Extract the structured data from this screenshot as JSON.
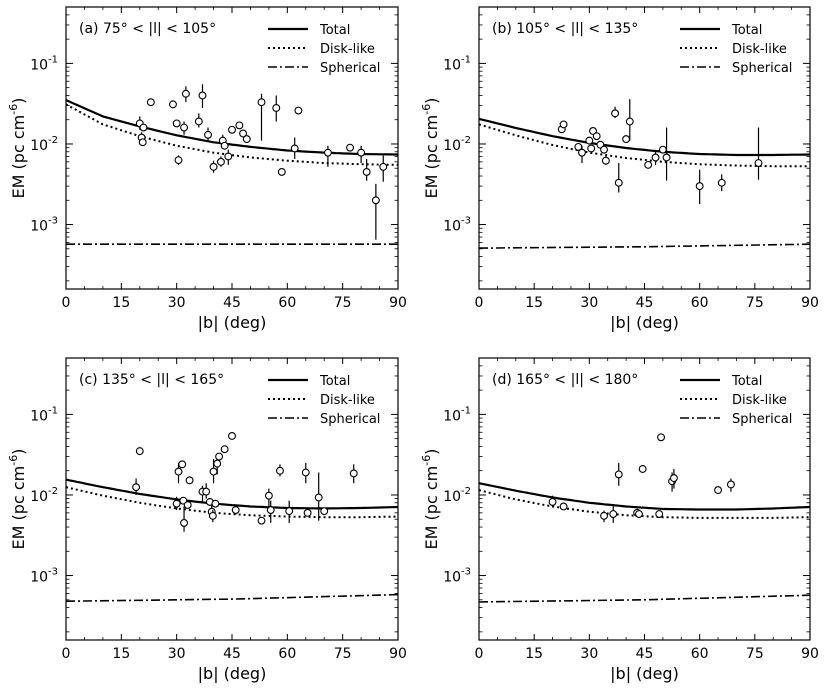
{
  "figure": {
    "xlabel": "|b|  (deg)",
    "ylabel": "EM  (pc cm",
    "ylabel_exp": "-6",
    "ylabel_close": ")"
  },
  "chart_data": [
    {
      "type": "scatter",
      "panel": "(a)",
      "title": "(a)  75° < |l| < 105°",
      "xlabel": "|b|  (deg)",
      "ylabel": "EM (pc cm^-6)",
      "xlim": [
        0,
        90
      ],
      "ylim_log10": [
        -3.8,
        -0.3
      ],
      "xticks": [
        0,
        15,
        30,
        45,
        60,
        75,
        90
      ],
      "yticks": [
        {
          "v": -3,
          "base": "10",
          "exp": "-3"
        },
        {
          "v": -2,
          "base": "10",
          "exp": "-2"
        },
        {
          "v": -1,
          "base": "10",
          "exp": "-1"
        }
      ],
      "legend": [
        "Total",
        "Disk-like",
        "Spherical"
      ],
      "curves": {
        "Total": {
          "x": [
            0,
            10,
            20,
            30,
            40,
            50,
            60,
            70,
            80,
            90
          ],
          "y": [
            0.035,
            0.022,
            0.0165,
            0.0128,
            0.0105,
            0.0092,
            0.0083,
            0.0078,
            0.0075,
            0.0074
          ]
        },
        "Disk-like": {
          "x": [
            0,
            10,
            20,
            30,
            40,
            50,
            60,
            70,
            80,
            90
          ],
          "y": [
            0.031,
            0.0175,
            0.0125,
            0.0095,
            0.0078,
            0.0068,
            0.0062,
            0.0058,
            0.0056,
            0.0055
          ]
        },
        "Spherical": {
          "x": [
            0,
            90
          ],
          "y": [
            0.00057,
            0.00057
          ]
        }
      },
      "points": [
        {
          "x": 20,
          "y": 0.018,
          "lo": 0.015,
          "hi": 0.022
        },
        {
          "x": 20.5,
          "y": 0.012,
          "lo": 0.0095,
          "hi": 0.014
        },
        {
          "x": 20.8,
          "y": 0.0105
        },
        {
          "x": 21,
          "y": 0.016
        },
        {
          "x": 23,
          "y": 0.033
        },
        {
          "x": 29,
          "y": 0.031
        },
        {
          "x": 30,
          "y": 0.018
        },
        {
          "x": 30.5,
          "y": 0.0063,
          "lo": 0.0055,
          "hi": 0.0072
        },
        {
          "x": 32,
          "y": 0.016,
          "lo": 0.013,
          "hi": 0.019
        },
        {
          "x": 32.5,
          "y": 0.042,
          "lo": 0.033,
          "hi": 0.052
        },
        {
          "x": 36,
          "y": 0.019,
          "lo": 0.016,
          "hi": 0.024
        },
        {
          "x": 37,
          "y": 0.04,
          "lo": 0.028,
          "hi": 0.055
        },
        {
          "x": 38.5,
          "y": 0.013,
          "lo": 0.011,
          "hi": 0.016
        },
        {
          "x": 40,
          "y": 0.0052,
          "lo": 0.0044,
          "hi": 0.0062
        },
        {
          "x": 42,
          "y": 0.006,
          "lo": 0.0052,
          "hi": 0.007
        },
        {
          "x": 42.5,
          "y": 0.011,
          "lo": 0.009,
          "hi": 0.013
        },
        {
          "x": 43,
          "y": 0.0095
        },
        {
          "x": 44,
          "y": 0.007,
          "lo": 0.0055,
          "hi": 0.0085
        },
        {
          "x": 45,
          "y": 0.015
        },
        {
          "x": 47,
          "y": 0.017
        },
        {
          "x": 48,
          "y": 0.0135
        },
        {
          "x": 49,
          "y": 0.0115
        },
        {
          "x": 53,
          "y": 0.033,
          "lo": 0.011,
          "hi": 0.042
        },
        {
          "x": 57,
          "y": 0.028,
          "lo": 0.019,
          "hi": 0.04
        },
        {
          "x": 58.5,
          "y": 0.0045
        },
        {
          "x": 62,
          "y": 0.0088,
          "lo": 0.0065,
          "hi": 0.012
        },
        {
          "x": 63,
          "y": 0.026
        },
        {
          "x": 71,
          "y": 0.0078,
          "lo": 0.0052,
          "hi": 0.0095
        },
        {
          "x": 77,
          "y": 0.009
        },
        {
          "x": 80,
          "y": 0.0078,
          "lo": 0.0058,
          "hi": 0.0095
        },
        {
          "x": 81.5,
          "y": 0.0045,
          "lo": 0.0035,
          "hi": 0.0065
        },
        {
          "x": 84,
          "y": 0.002,
          "lo": 0.00065,
          "hi": 0.0032
        },
        {
          "x": 86,
          "y": 0.0052,
          "lo": 0.0034,
          "hi": 0.0072
        }
      ]
    },
    {
      "type": "scatter",
      "panel": "(b)",
      "title": "(b)  105° < |l| < 135°",
      "xlabel": "|b|  (deg)",
      "ylabel": "EM (pc cm^-6)",
      "xlim": [
        0,
        90
      ],
      "ylim_log10": [
        -3.8,
        -0.3
      ],
      "xticks": [
        0,
        15,
        30,
        45,
        60,
        75,
        90
      ],
      "yticks": [
        {
          "v": -3,
          "base": "10",
          "exp": "-3"
        },
        {
          "v": -2,
          "base": "10",
          "exp": "-2"
        },
        {
          "v": -1,
          "base": "10",
          "exp": "-1"
        }
      ],
      "legend": [
        "Total",
        "Disk-like",
        "Spherical"
      ],
      "curves": {
        "Total": {
          "x": [
            0,
            10,
            20,
            30,
            40,
            50,
            60,
            70,
            80,
            90
          ],
          "y": [
            0.0205,
            0.0158,
            0.0125,
            0.0103,
            0.0089,
            0.008,
            0.0075,
            0.0073,
            0.0073,
            0.0074
          ]
        },
        "Disk-like": {
          "x": [
            0,
            10,
            20,
            30,
            40,
            50,
            60,
            70,
            80,
            90
          ],
          "y": [
            0.0175,
            0.0128,
            0.0097,
            0.0078,
            0.0067,
            0.006,
            0.0056,
            0.0054,
            0.0053,
            0.0053
          ]
        },
        "Spherical": {
          "x": [
            0,
            45,
            90
          ],
          "y": [
            0.00051,
            0.00053,
            0.00057
          ]
        }
      },
      "points": [
        {
          "x": 22.5,
          "y": 0.0152
        },
        {
          "x": 23,
          "y": 0.0175
        },
        {
          "x": 27,
          "y": 0.0092
        },
        {
          "x": 28,
          "y": 0.0078,
          "lo": 0.0058,
          "hi": 0.0095
        },
        {
          "x": 30,
          "y": 0.011
        },
        {
          "x": 30.5,
          "y": 0.0088
        },
        {
          "x": 31,
          "y": 0.0145
        },
        {
          "x": 32,
          "y": 0.0125
        },
        {
          "x": 33,
          "y": 0.0098
        },
        {
          "x": 34,
          "y": 0.0085
        },
        {
          "x": 34.5,
          "y": 0.0062,
          "lo": 0.0055,
          "hi": 0.0072
        },
        {
          "x": 37,
          "y": 0.024,
          "lo": 0.021,
          "hi": 0.029
        },
        {
          "x": 38,
          "y": 0.0033,
          "lo": 0.0025,
          "hi": 0.0058
        },
        {
          "x": 40,
          "y": 0.0115
        },
        {
          "x": 41,
          "y": 0.019,
          "lo": 0.011,
          "hi": 0.036
        },
        {
          "x": 46,
          "y": 0.0055
        },
        {
          "x": 48,
          "y": 0.0068,
          "lo": 0.0055,
          "hi": 0.0082
        },
        {
          "x": 50,
          "y": 0.0085
        },
        {
          "x": 51,
          "y": 0.0068,
          "lo": 0.0035,
          "hi": 0.016
        },
        {
          "x": 60,
          "y": 0.003,
          "lo": 0.0018,
          "hi": 0.0048
        },
        {
          "x": 66,
          "y": 0.0033,
          "lo": 0.0026,
          "hi": 0.0042
        },
        {
          "x": 76,
          "y": 0.0058,
          "lo": 0.0036,
          "hi": 0.016
        }
      ]
    },
    {
      "type": "scatter",
      "panel": "(c)",
      "title": "(c)  135° < |l| < 165°",
      "xlabel": "|b|  (deg)",
      "ylabel": "EM (pc cm^-6)",
      "xlim": [
        0,
        90
      ],
      "ylim_log10": [
        -3.8,
        -0.3
      ],
      "xticks": [
        0,
        15,
        30,
        45,
        60,
        75,
        90
      ],
      "yticks": [
        {
          "v": -3,
          "base": "10",
          "exp": "-3"
        },
        {
          "v": -2,
          "base": "10",
          "exp": "-2"
        },
        {
          "v": -1,
          "base": "10",
          "exp": "-1"
        }
      ],
      "legend": [
        "Total",
        "Disk-like",
        "Spherical"
      ],
      "curves": {
        "Total": {
          "x": [
            0,
            10,
            20,
            30,
            40,
            50,
            60,
            70,
            80,
            90
          ],
          "y": [
            0.0155,
            0.0125,
            0.0103,
            0.0088,
            0.0078,
            0.0072,
            0.0069,
            0.0068,
            0.0069,
            0.0071
          ]
        },
        "Disk-like": {
          "x": [
            0,
            10,
            20,
            30,
            40,
            50,
            60,
            70,
            80,
            90
          ],
          "y": [
            0.0125,
            0.0098,
            0.008,
            0.0068,
            0.006,
            0.0056,
            0.0054,
            0.0053,
            0.0053,
            0.0054
          ]
        },
        "Spherical": {
          "x": [
            0,
            45,
            90
          ],
          "y": [
            0.00048,
            0.00051,
            0.00058
          ]
        }
      },
      "points": [
        {
          "x": 19,
          "y": 0.0125,
          "lo": 0.01,
          "hi": 0.016
        },
        {
          "x": 20,
          "y": 0.035
        },
        {
          "x": 30,
          "y": 0.0078,
          "lo": 0.0065,
          "hi": 0.0095
        },
        {
          "x": 30.5,
          "y": 0.0195,
          "lo": 0.014,
          "hi": 0.025
        },
        {
          "x": 31.5,
          "y": 0.024
        },
        {
          "x": 31.8,
          "y": 0.0085
        },
        {
          "x": 32,
          "y": 0.0045,
          "lo": 0.0035,
          "hi": 0.0072
        },
        {
          "x": 33,
          "y": 0.0075
        },
        {
          "x": 33.5,
          "y": 0.0152
        },
        {
          "x": 37,
          "y": 0.011,
          "lo": 0.008,
          "hi": 0.013
        },
        {
          "x": 38,
          "y": 0.011,
          "lo": 0.009,
          "hi": 0.014
        },
        {
          "x": 39,
          "y": 0.0082
        },
        {
          "x": 39.5,
          "y": 0.0062,
          "lo": 0.0052,
          "hi": 0.0074
        },
        {
          "x": 39.8,
          "y": 0.0055,
          "lo": 0.0046,
          "hi": 0.0065
        },
        {
          "x": 40,
          "y": 0.0195,
          "lo": 0.014,
          "hi": 0.028
        },
        {
          "x": 40.5,
          "y": 0.0078
        },
        {
          "x": 41,
          "y": 0.0245,
          "lo": 0.018,
          "hi": 0.032
        },
        {
          "x": 41.5,
          "y": 0.03
        },
        {
          "x": 43,
          "y": 0.037
        },
        {
          "x": 45,
          "y": 0.054
        },
        {
          "x": 46,
          "y": 0.0065,
          "lo": 0.0057,
          "hi": 0.0074
        },
        {
          "x": 53,
          "y": 0.0048
        },
        {
          "x": 55,
          "y": 0.0098,
          "lo": 0.0072,
          "hi": 0.012
        },
        {
          "x": 55.5,
          "y": 0.0065,
          "lo": 0.0045,
          "hi": 0.0085
        },
        {
          "x": 58,
          "y": 0.02,
          "lo": 0.017,
          "hi": 0.024
        },
        {
          "x": 60.5,
          "y": 0.0063,
          "lo": 0.0045,
          "hi": 0.0085
        },
        {
          "x": 65,
          "y": 0.019,
          "lo": 0.014,
          "hi": 0.025
        },
        {
          "x": 65.5,
          "y": 0.006
        },
        {
          "x": 68.5,
          "y": 0.0093,
          "lo": 0.0048,
          "hi": 0.019
        },
        {
          "x": 70,
          "y": 0.0063
        },
        {
          "x": 78,
          "y": 0.0185,
          "lo": 0.014,
          "hi": 0.024
        }
      ]
    },
    {
      "type": "scatter",
      "panel": "(d)",
      "title": "(d)  165° < |l| < 180°",
      "xlabel": "|b|  (deg)",
      "ylabel": "EM (pc cm^-6)",
      "xlim": [
        0,
        90
      ],
      "ylim_log10": [
        -3.8,
        -0.3
      ],
      "xticks": [
        0,
        15,
        30,
        45,
        60,
        75,
        90
      ],
      "yticks": [
        {
          "v": -3,
          "base": "10",
          "exp": "-3"
        },
        {
          "v": -2,
          "base": "10",
          "exp": "-2"
        },
        {
          "v": -1,
          "base": "10",
          "exp": "-1"
        }
      ],
      "legend": [
        "Total",
        "Disk-like",
        "Spherical"
      ],
      "curves": {
        "Total": {
          "x": [
            0,
            10,
            20,
            30,
            40,
            50,
            60,
            70,
            80,
            90
          ],
          "y": [
            0.014,
            0.0113,
            0.0093,
            0.008,
            0.0072,
            0.0067,
            0.0066,
            0.0066,
            0.0068,
            0.0071
          ]
        },
        "Disk-like": {
          "x": [
            0,
            10,
            20,
            30,
            40,
            50,
            60,
            70,
            80,
            90
          ],
          "y": [
            0.0115,
            0.0088,
            0.0072,
            0.0062,
            0.0056,
            0.0053,
            0.0052,
            0.0052,
            0.0052,
            0.0053
          ]
        },
        "Spherical": {
          "x": [
            0,
            45,
            90
          ],
          "y": [
            0.00047,
            0.0005,
            0.00057
          ]
        }
      },
      "points": [
        {
          "x": 20,
          "y": 0.0082,
          "lo": 0.007,
          "hi": 0.0098
        },
        {
          "x": 23,
          "y": 0.0072
        },
        {
          "x": 34,
          "y": 0.0055,
          "lo": 0.0046,
          "hi": 0.0064
        },
        {
          "x": 36.5,
          "y": 0.0058,
          "lo": 0.0045,
          "hi": 0.0072
        },
        {
          "x": 38,
          "y": 0.018,
          "lo": 0.013,
          "hi": 0.025
        },
        {
          "x": 43,
          "y": 0.006,
          "lo": 0.0055,
          "hi": 0.0068
        },
        {
          "x": 43.5,
          "y": 0.0058
        },
        {
          "x": 44.5,
          "y": 0.021
        },
        {
          "x": 49,
          "y": 0.0058
        },
        {
          "x": 49.5,
          "y": 0.052
        },
        {
          "x": 52.5,
          "y": 0.0148,
          "lo": 0.011,
          "hi": 0.019
        },
        {
          "x": 53,
          "y": 0.0162,
          "lo": 0.012,
          "hi": 0.021
        },
        {
          "x": 65,
          "y": 0.0115
        },
        {
          "x": 68.5,
          "y": 0.0135,
          "lo": 0.011,
          "hi": 0.016
        }
      ]
    }
  ]
}
